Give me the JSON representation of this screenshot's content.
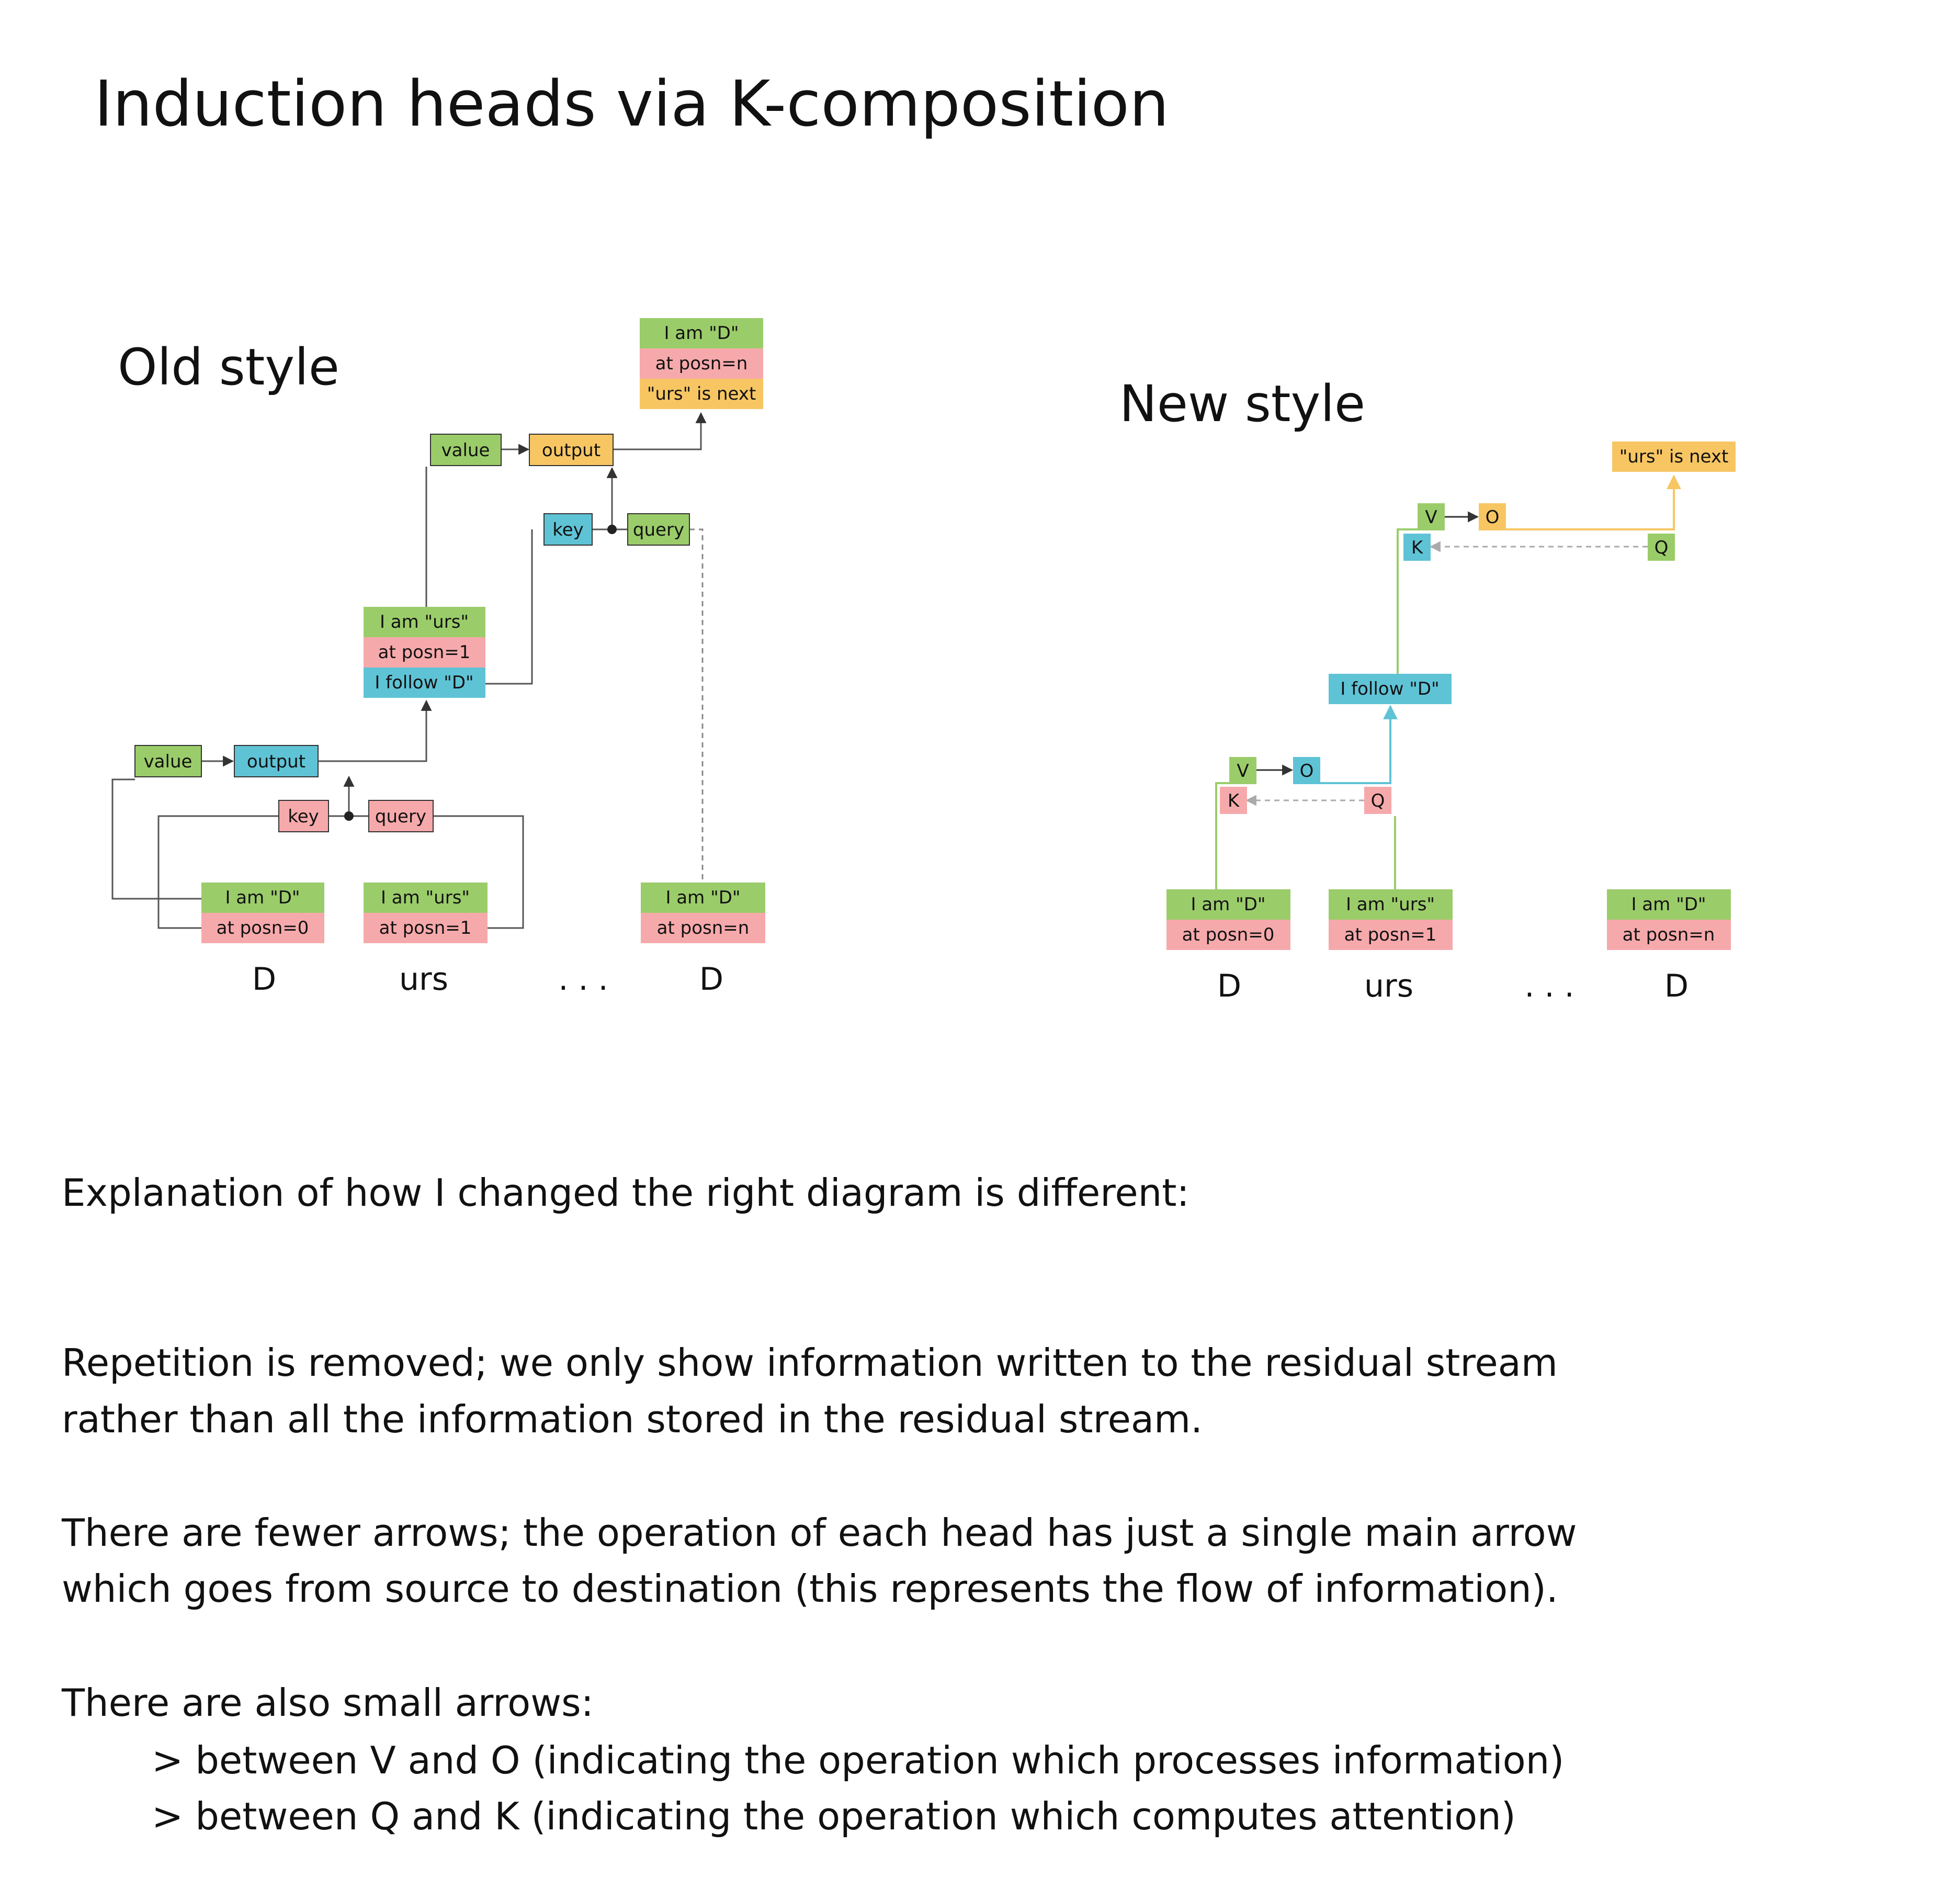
{
  "title": "Induction heads via K-composition",
  "colors": {
    "green": "#9bcc6a",
    "pink": "#f6a9ab",
    "yellow": "#f7c663",
    "cyan": "#5fc3d6",
    "line_gray": "#555555",
    "dashed_gray": "#aaaaaa"
  },
  "old_style": {
    "heading": "Old style",
    "output_stack": [
      "I am \"D\"",
      "at posn=n",
      "\"urs\" is next"
    ],
    "head2": {
      "value": "value",
      "output": "output",
      "key": "key",
      "query": "query"
    },
    "middle_stack": [
      "I am \"urs\"",
      "at posn=1",
      "I follow \"D\""
    ],
    "head1": {
      "value": "value",
      "output": "output",
      "key": "key",
      "query": "query"
    },
    "tokens": [
      {
        "stack": [
          "I am \"D\"",
          "at posn=0"
        ],
        "label": "D"
      },
      {
        "stack": [
          "I am \"urs\"",
          "at posn=1"
        ],
        "label": "urs"
      },
      {
        "stack": [
          "I am \"D\"",
          "at posn=n"
        ],
        "label": "D"
      }
    ],
    "ellipsis": ". . ."
  },
  "new_style": {
    "heading": "New style",
    "output_box": "\"urs\" is next",
    "head2": {
      "v": "V",
      "o": "O",
      "k": "K",
      "q": "Q"
    },
    "follow_box": "I follow \"D\"",
    "head1": {
      "v": "V",
      "o": "O",
      "k": "K",
      "q": "Q"
    },
    "tokens": [
      {
        "stack": [
          "I am \"D\"",
          "at posn=0"
        ],
        "label": "D"
      },
      {
        "stack": [
          "I am \"urs\"",
          "at posn=1"
        ],
        "label": "urs"
      },
      {
        "stack": [
          "I am \"D\"",
          "at posn=n"
        ],
        "label": "D"
      }
    ],
    "ellipsis": ". . ."
  },
  "explanation": {
    "intro": "Explanation of how I changed the right diagram is different:",
    "para1": [
      "Repetition is removed; we only show information written to the residual stream",
      "rather than all the information stored in the residual stream."
    ],
    "para2": [
      "There are fewer arrows; the operation of each head has just a single main arrow",
      "which goes from source to destination (this represents the flow of information)."
    ],
    "para3_intro": "There are also small arrows:",
    "bullets": [
      "> between V and O (indicating the operation which processes information)",
      "> between Q and K (indicating the operation which computes attention)"
    ]
  }
}
